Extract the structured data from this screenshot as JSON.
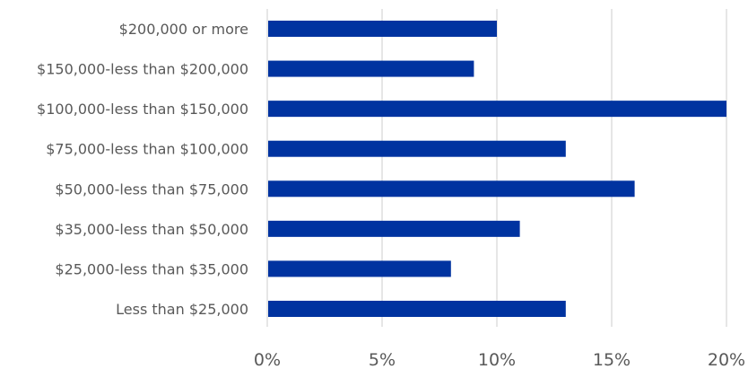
{
  "chart_data": {
    "type": "bar",
    "orientation": "horizontal",
    "categories": [
      "$200,000 or more",
      "$150,000-less than $200,000",
      "$100,000-less than $150,000",
      "$75,000-less than $100,000",
      "$50,000-less than $75,000",
      "$35,000-less than $50,000",
      "$25,000-less than $35,000",
      "Less than $25,000"
    ],
    "values": [
      10,
      9,
      20,
      13,
      16,
      11,
      8,
      13
    ],
    "xlim": [
      0,
      20
    ],
    "xticks": [
      0,
      5,
      10,
      15,
      20
    ],
    "xtick_labels": [
      "0%",
      "5%",
      "10%",
      "15%",
      "20%"
    ],
    "grid": true,
    "bar_color": "#0033a0"
  }
}
